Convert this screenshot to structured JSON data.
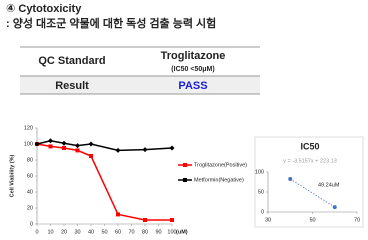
{
  "header": {
    "title": "④ Cytotoxicity",
    "subtitle": ": 양성 대조군 약물에 대한 독성 검출 능력 시험"
  },
  "table": {
    "rows": [
      [
        "QC Standard",
        "Troglitazone",
        "(IC50 <50μM)"
      ],
      [
        "Result",
        "PASS"
      ]
    ]
  },
  "chart_data": [
    {
      "type": "line",
      "y_label": "Cell Viability (%)",
      "x_unit": "(uM)",
      "x": [
        0,
        10,
        20,
        30,
        40,
        60,
        80,
        100
      ],
      "series": [
        {
          "name": "Troglitazone(Positive)",
          "color": "#ff0000",
          "values": [
            100,
            97,
            95,
            92,
            85,
            12,
            5,
            5
          ]
        },
        {
          "name": "Metformin(Negative)",
          "color": "#000000",
          "values": [
            100,
            104,
            101,
            98,
            100,
            92,
            93,
            95
          ]
        }
      ],
      "xlim": [
        0,
        100
      ],
      "xticks": [
        0,
        10,
        20,
        30,
        40,
        50,
        60,
        70,
        80,
        90,
        100
      ],
      "ylim": [
        0,
        120
      ],
      "yticks": [
        0,
        20,
        40,
        60,
        80,
        100,
        120
      ]
    },
    {
      "type": "scatter",
      "title": "IC50",
      "equation": "y = -3.5157x + 223.13",
      "annotation": "49.24uM",
      "x": [
        40,
        60
      ],
      "values": [
        82.5,
        12.2
      ],
      "color": "#4472c4",
      "xlim": [
        30,
        70
      ],
      "xticks": [
        30,
        50,
        70
      ],
      "ylim": [
        0,
        100
      ],
      "yticks": [
        0,
        50,
        100
      ]
    }
  ]
}
